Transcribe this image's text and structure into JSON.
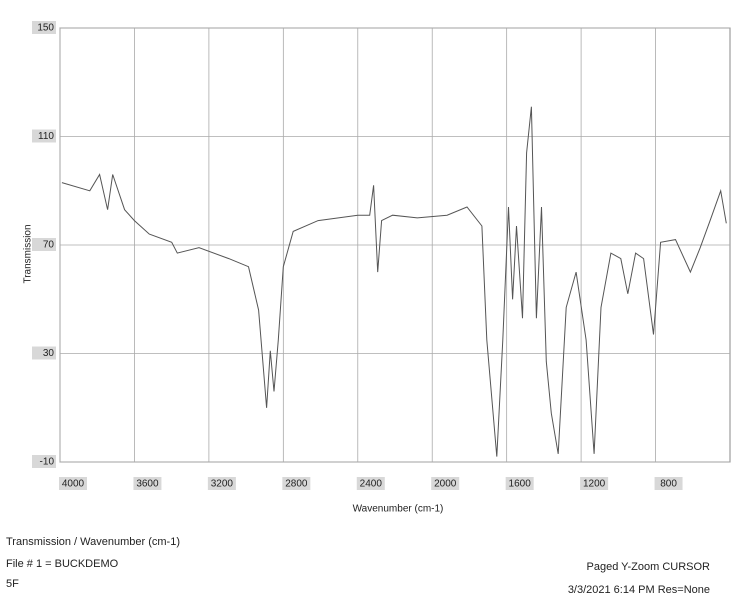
{
  "chart_data": {
    "type": "line",
    "x_label": "Wavenumber (cm-1)",
    "y_label": "Transmission",
    "x": [
      3990,
      3840,
      3787,
      3744,
      3717,
      3653,
      3600,
      3520,
      3400,
      3370,
      3253,
      3093,
      2987,
      2933,
      2890,
      2870,
      2850,
      2827,
      2800,
      2747,
      2613,
      2400,
      2336,
      2315,
      2293,
      2272,
      2213,
      2080,
      1920,
      1813,
      1733,
      1707,
      1653,
      1621,
      1590,
      1568,
      1547,
      1515,
      1493,
      1467,
      1440,
      1413,
      1387,
      1360,
      1323,
      1280,
      1227,
      1173,
      1130,
      1093,
      1040,
      987,
      949,
      907,
      864,
      811,
      773,
      693,
      613,
      560,
      507,
      450,
      420
    ],
    "values": [
      93,
      90,
      96,
      83,
      96,
      83,
      79,
      74,
      71,
      67,
      69,
      65,
      62,
      46,
      10,
      31,
      16,
      35,
      62,
      75,
      79,
      81,
      81,
      92,
      60,
      79,
      81,
      80,
      81,
      84,
      77,
      35,
      -8,
      35,
      84,
      50,
      77,
      43,
      104,
      121,
      43,
      84,
      27,
      8,
      -7,
      47,
      60,
      35,
      -7,
      47,
      67,
      65,
      52,
      67,
      65,
      37,
      71,
      72,
      60,
      69,
      79,
      90,
      78
    ],
    "color": "#555555",
    "xlim": [
      4000,
      400
    ],
    "xticks": [
      4000,
      3600,
      3200,
      2800,
      2400,
      2000,
      1600,
      1200,
      800
    ],
    "ylim": [
      -10,
      150
    ],
    "yticks": [
      -10,
      30,
      70,
      110,
      150
    ],
    "grid": true
  },
  "footer": {
    "title": "Transmission / Wavenumber (cm-1)",
    "file": "File # 1 = BUCKDEMO",
    "note": "5F",
    "mode": "Paged  Y-Zoom CURSOR",
    "date": "3/3/2021  6:14 PM  Res=None"
  }
}
